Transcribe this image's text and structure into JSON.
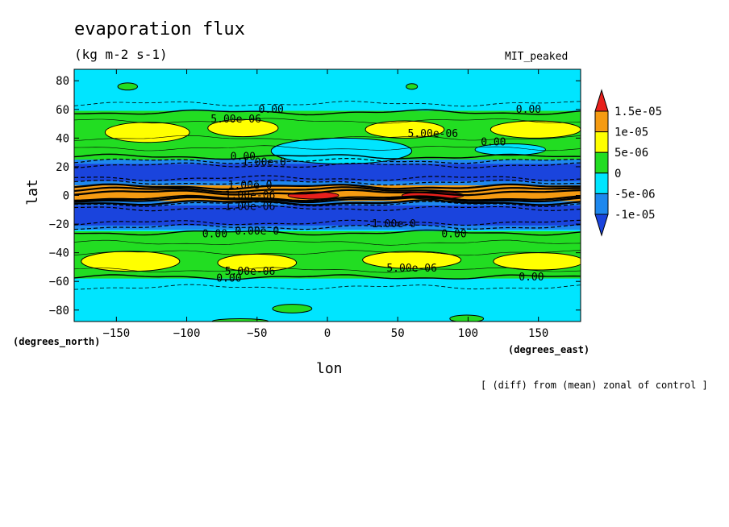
{
  "chart_data": {
    "type": "heatmap",
    "title": "evaporation flux",
    "subtitle": "(kg m-2 s-1)",
    "model_label": "MIT_peaked",
    "xlabel": "lon",
    "ylabel": "lat",
    "x_units": "(degrees_east)",
    "y_units": "(degrees_north)",
    "footnote": "[ (diff) from (mean) zonal of control ]",
    "xlim": [
      -180,
      180
    ],
    "ylim": [
      -88,
      88
    ],
    "x_ticks": [
      -150,
      -100,
      -50,
      0,
      50,
      100,
      150
    ],
    "y_ticks": [
      80,
      60,
      40,
      20,
      0,
      -20,
      -40,
      -60,
      -80
    ],
    "x_tick_labels": [
      "−150",
      "−100",
      "−50",
      "0",
      "50",
      "100",
      "150"
    ],
    "y_tick_labels": [
      "80",
      "60",
      "40",
      "20",
      "0",
      "−20",
      "−40",
      "−60",
      "−80"
    ],
    "colorbar": {
      "labels": [
        "1.5e-05",
        "1e-05",
        "5e-06",
        "0",
        "-5e-06",
        "-1e-05"
      ],
      "colors": [
        "#e8201c",
        "#f59b12",
        "#ffff00",
        "#22dd22",
        "#00e5ff",
        "#1e88ee",
        "#1a44dd"
      ]
    },
    "zonal_bands": [
      {
        "lat": [
          58,
          88
        ],
        "level": "-5e-06 to 0"
      },
      {
        "lat": [
          27,
          58
        ],
        "level": "0 to 5e-06"
      },
      {
        "lat": [
          8,
          24
        ],
        "level": "-1e-05 to -5e-06"
      },
      {
        "lat": [
          -3,
          5
        ],
        "level": "5e-06 to 1.5e-05"
      },
      {
        "lat": [
          -23,
          -5
        ],
        "level": "-1e-05 to -5e-06"
      },
      {
        "lat": [
          -57,
          -27
        ],
        "level": "0 to 5e-06"
      },
      {
        "lat": [
          -88,
          -58
        ],
        "level": "-5e-06 to 0"
      }
    ],
    "contour_labels": [
      {
        "text": "0.00",
        "x": -40,
        "y": 60
      },
      {
        "text": "5.00e-06",
        "x": -65,
        "y": 53
      },
      {
        "text": "0.00",
        "x": 143,
        "y": 60
      },
      {
        "text": "5.00e-06",
        "x": 75,
        "y": 43
      },
      {
        "text": "0.00",
        "x": 118,
        "y": 37
      },
      {
        "text": "0.00",
        "x": -60,
        "y": 27
      },
      {
        "text": "1.00e-0",
        "x": -45,
        "y": 23
      },
      {
        "text": "1.00e-0",
        "x": -55,
        "y": 7
      },
      {
        "text": "1.00e-06",
        "x": -55,
        "y": 0
      },
      {
        "text": "1.00e-06",
        "x": -55,
        "y": -8
      },
      {
        "text": "-1.00e-0",
        "x": 45,
        "y": -20
      },
      {
        "text": "0.00",
        "x": -80,
        "y": -27
      },
      {
        "text": "0.00e-0",
        "x": -50,
        "y": -25
      },
      {
        "text": "0.00",
        "x": 90,
        "y": -27
      },
      {
        "text": "5.00e-06",
        "x": -55,
        "y": -53
      },
      {
        "text": "5.00e-06",
        "x": 60,
        "y": -51
      },
      {
        "text": "0.00",
        "x": -70,
        "y": -58
      },
      {
        "text": "0.00",
        "x": 145,
        "y": -57
      }
    ]
  }
}
